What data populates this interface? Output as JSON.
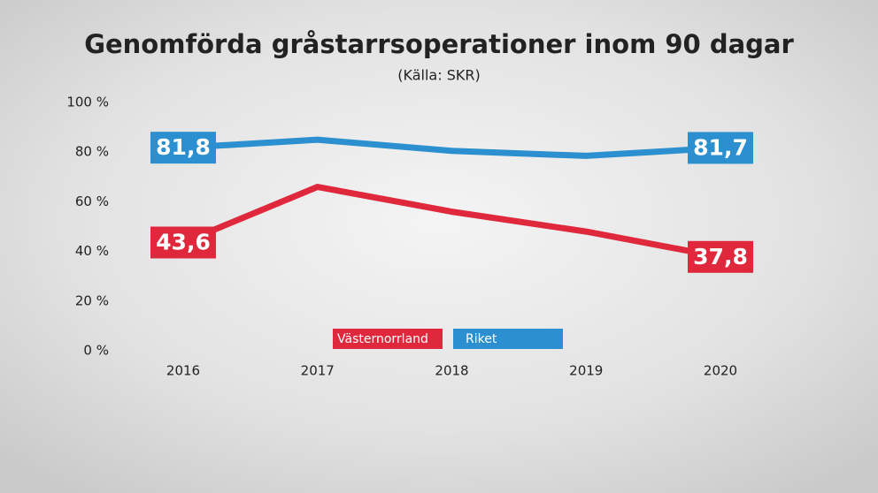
{
  "chart_data": {
    "type": "line",
    "title": "Genomförda gråstarrsoperationer inom 90 dagar",
    "subtitle": "(Källa: SKR)",
    "categories": [
      "2016",
      "2017",
      "2018",
      "2019",
      "2020"
    ],
    "series": [
      {
        "name": "Västernorrland",
        "color": "#e0283c",
        "values": [
          43.6,
          66,
          56,
          48,
          37.8
        ],
        "value_labels": [
          "43,6",
          null,
          null,
          null,
          "37,8"
        ]
      },
      {
        "name": "Riket",
        "color": "#2b8fd0",
        "values": [
          81.8,
          85,
          80.5,
          78.5,
          81.7
        ],
        "value_labels": [
          "81,8",
          null,
          null,
          null,
          "81,7"
        ]
      }
    ],
    "ylim": [
      0,
      100
    ],
    "yticks": [
      {
        "value": 0,
        "label": "0 %"
      },
      {
        "value": 20,
        "label": "20 %"
      },
      {
        "value": 40,
        "label": "40 %"
      },
      {
        "value": 60,
        "label": "60 %"
      },
      {
        "value": 80,
        "label": "80 %"
      },
      {
        "value": 100,
        "label": "100 %"
      }
    ],
    "grid": false
  }
}
